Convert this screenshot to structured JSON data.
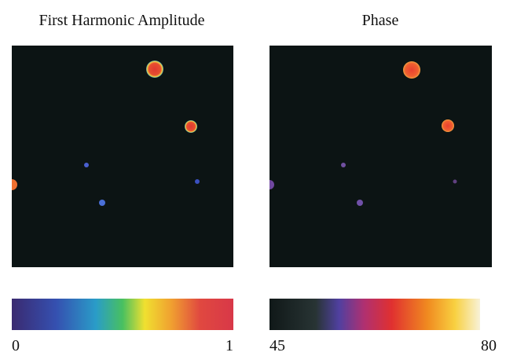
{
  "panels": [
    {
      "title": "First Harmonic Amplitude",
      "scale": {
        "min": 0,
        "max": 1
      }
    },
    {
      "title": "Phase",
      "scale": {
        "min": 45,
        "max": 80
      }
    }
  ]
}
